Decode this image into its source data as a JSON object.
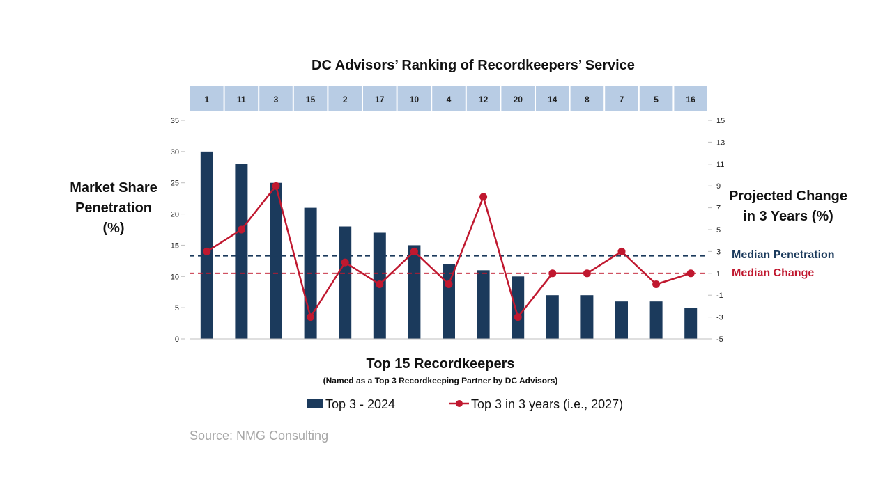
{
  "colors": {
    "bar": "#1b3a5c",
    "line": "#c0182f",
    "rank_cell": "#b8cce4",
    "median_penetration": "#1b3a5c",
    "median_change": "#c0182f",
    "source": "#a6a6a6"
  },
  "chart_data": {
    "type": "bar",
    "title": "DC Advisors’ Ranking of Recordkeepers’ Service",
    "rank_row": [
      "1",
      "11",
      "3",
      "15",
      "2",
      "17",
      "10",
      "4",
      "12",
      "20",
      "14",
      "8",
      "7",
      "5",
      "16"
    ],
    "xlabel": "Top 15 Recordkeepers",
    "xlabel_sub": "(Named as a Top 3 Recordkeeping Partner by DC Advisors)",
    "ylabel_left": [
      "Market Share",
      "Penetration",
      "(%)"
    ],
    "ylabel_right": [
      "Projected Change",
      "in 3 Years (%)"
    ],
    "y_left": {
      "min": 0,
      "max": 35,
      "ticks": [
        "0",
        "5",
        "10",
        "15",
        "20",
        "25",
        "30",
        "35"
      ]
    },
    "y_right": {
      "min": -5,
      "max": 15,
      "ticks": [
        "-5",
        "-3",
        "-1",
        "1",
        "3",
        "5",
        "7",
        "9",
        "11",
        "13",
        "15"
      ]
    },
    "series": [
      {
        "name": "Top 3 - 2024",
        "type": "bar",
        "axis": "left",
        "values": [
          30,
          28,
          25,
          21,
          18,
          17,
          15,
          12,
          11,
          10,
          7,
          7,
          6,
          6,
          5
        ]
      },
      {
        "name": "Top 3 in 3 years (i.e., 2027)",
        "type": "line",
        "axis": "right",
        "values": [
          3,
          5,
          9,
          -3,
          2,
          0,
          3,
          0,
          8,
          -3,
          1,
          1,
          3,
          0,
          1
        ]
      }
    ],
    "reference_lines": [
      {
        "label": "Median Penetration",
        "axis": "left",
        "value": 13.3
      },
      {
        "label": "Median Change",
        "axis": "right",
        "value": 1
      }
    ],
    "legend_position": "bottom",
    "grid": false
  },
  "source": "Source: NMG Consulting"
}
